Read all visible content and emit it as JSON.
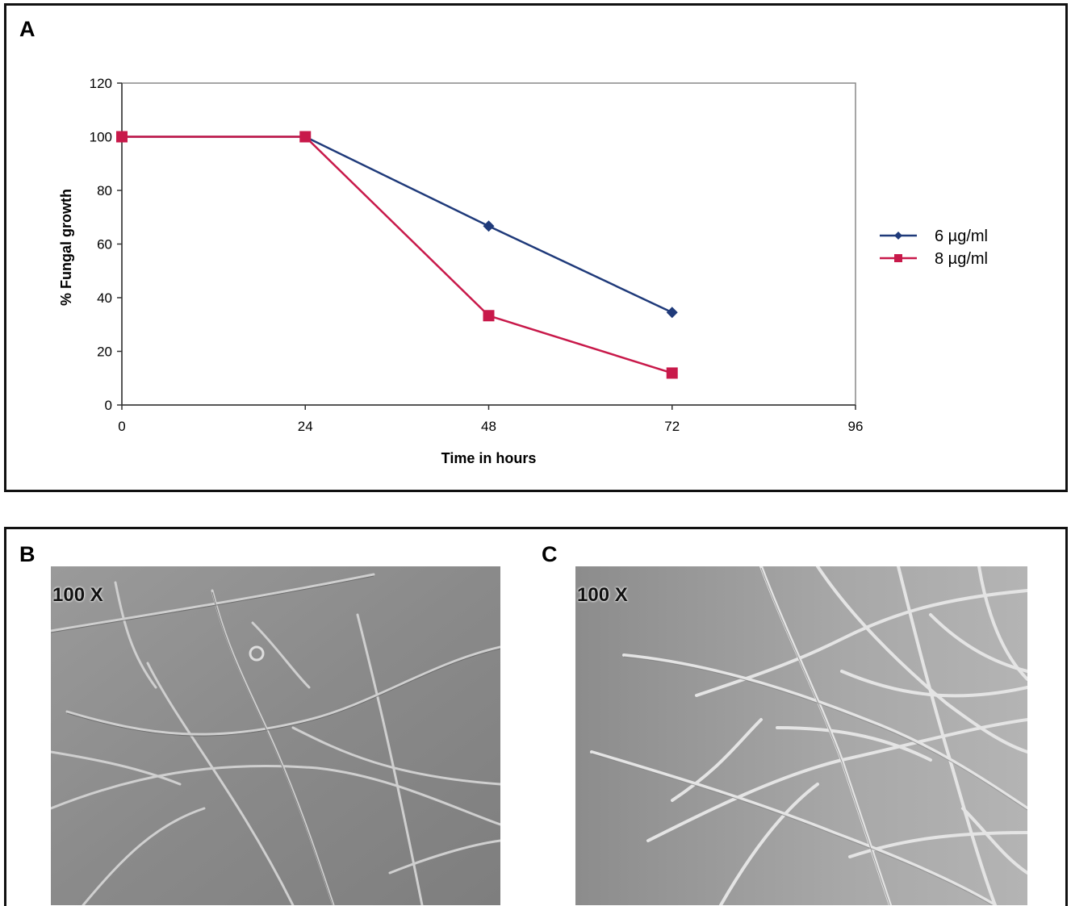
{
  "panel_a": {
    "letter": "A"
  },
  "panel_b": {
    "letter": "B",
    "magnification": "100 X"
  },
  "panel_c": {
    "letter": "C",
    "magnification": "100 X"
  },
  "colors": {
    "series_6": "#1f3a7a",
    "series_8": "#c8194a"
  },
  "chart_data": {
    "type": "line",
    "xlabel": "Time in hours",
    "ylabel": "% Fungal growth",
    "xlim": [
      0,
      96
    ],
    "ylim": [
      0,
      120
    ],
    "x_ticks": [
      0,
      24,
      48,
      72,
      96
    ],
    "y_ticks": [
      0,
      20,
      40,
      60,
      80,
      100,
      120
    ],
    "grid": false,
    "legend_position": "right",
    "series": [
      {
        "name": "6 µg/ml",
        "marker": "diamond",
        "x": [
          0,
          24,
          48,
          72
        ],
        "y": [
          100,
          100,
          66.7,
          34.5
        ]
      },
      {
        "name": "8 µg/ml",
        "marker": "square",
        "x": [
          0,
          24,
          48,
          72
        ],
        "y": [
          100,
          100,
          33.3,
          11.9
        ]
      }
    ]
  }
}
